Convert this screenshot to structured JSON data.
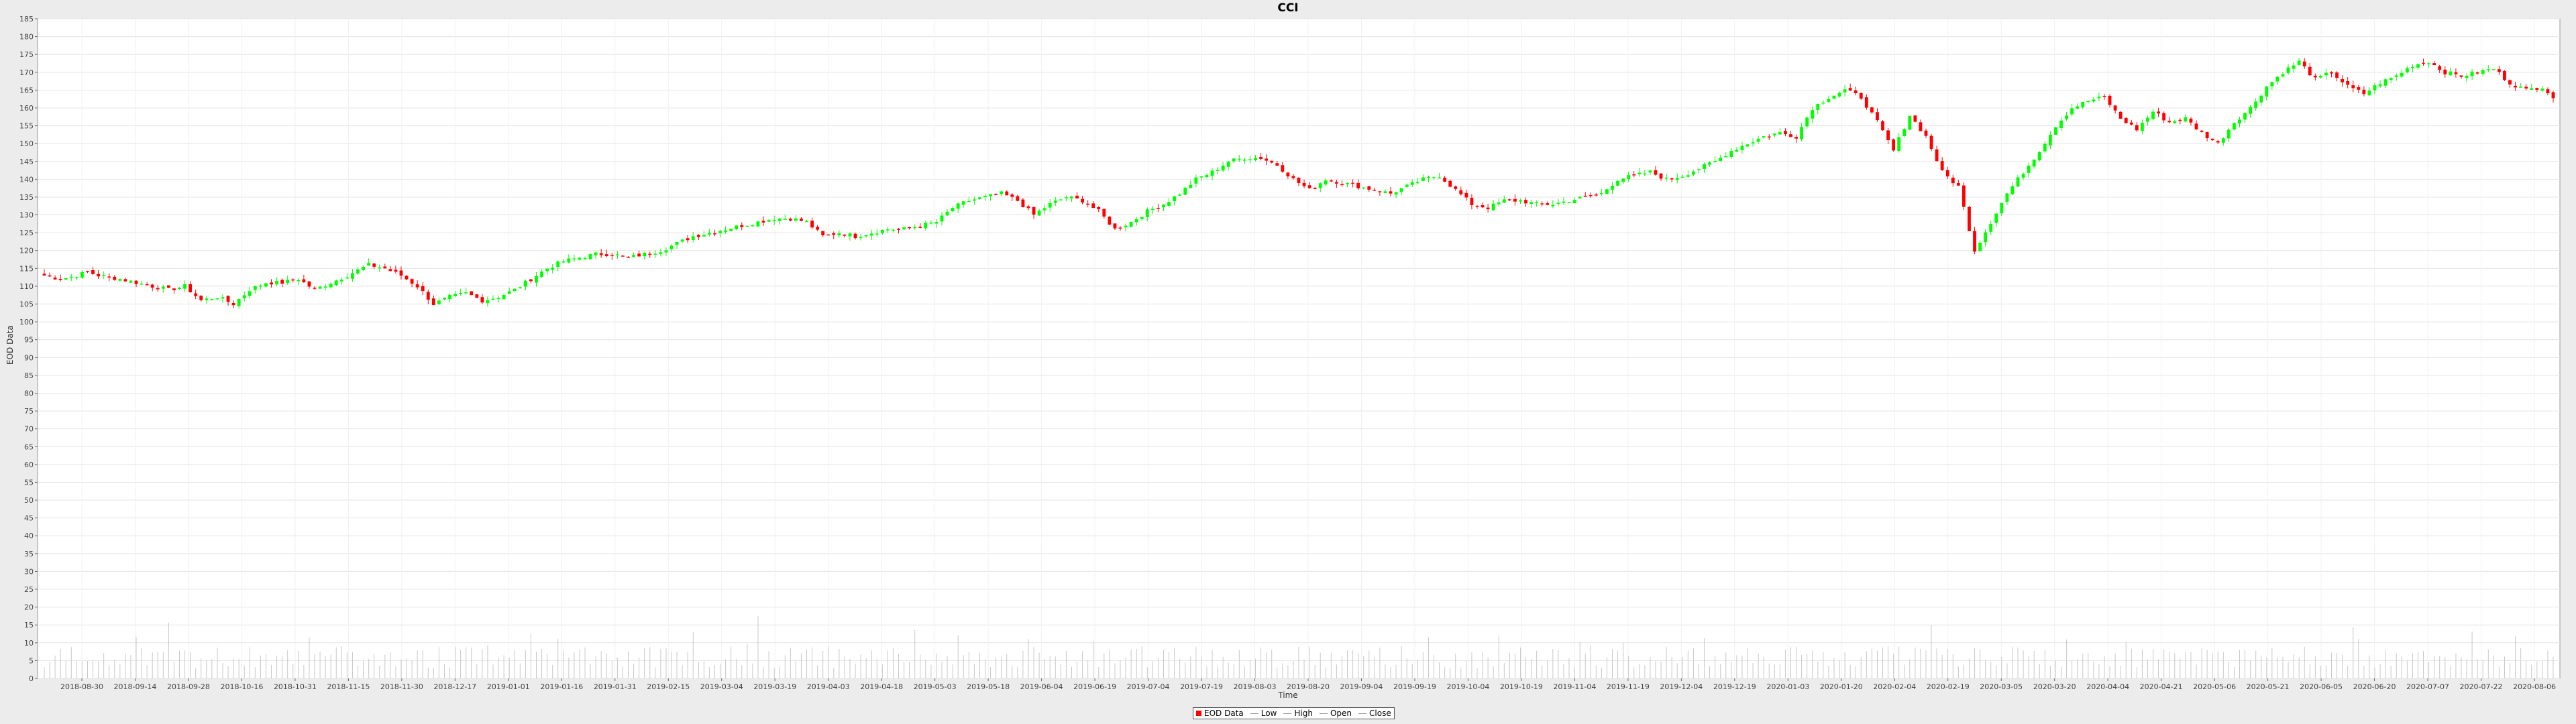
{
  "chart_data": {
    "type": "candlestick",
    "title": "CCI",
    "xlabel": "Time",
    "ylabel": "EOD Data",
    "ylim": [
      0,
      185
    ],
    "y_ticks": [
      0,
      5,
      10,
      15,
      20,
      25,
      30,
      35,
      40,
      45,
      50,
      55,
      60,
      65,
      70,
      75,
      80,
      85,
      90,
      95,
      100,
      105,
      110,
      115,
      120,
      125,
      130,
      135,
      140,
      145,
      150,
      155,
      160,
      165,
      170,
      175,
      180,
      185
    ],
    "x_ticks": [
      "2018-08-30",
      "2018-09-14",
      "2018-09-28",
      "2018-10-16",
      "2018-10-31",
      "2018-11-15",
      "2018-11-30",
      "2018-12-17",
      "2019-01-01",
      "2019-01-16",
      "2019-01-31",
      "2019-02-15",
      "2019-03-04",
      "2019-03-19",
      "2019-04-03",
      "2019-04-18",
      "2019-05-03",
      "2019-05-18",
      "2019-06-04",
      "2019-06-19",
      "2019-07-04",
      "2019-07-19",
      "2019-08-03",
      "2019-08-20",
      "2019-09-04",
      "2019-09-19",
      "2019-10-04",
      "2019-10-19",
      "2019-11-04",
      "2019-11-19",
      "2019-12-04",
      "2019-12-19",
      "2020-01-03",
      "2020-01-20",
      "2020-02-04",
      "2020-02-19",
      "2020-03-05",
      "2020-03-20",
      "2020-04-04",
      "2020-04-21",
      "2020-05-06",
      "2020-05-21",
      "2020-06-05",
      "2020-06-20",
      "2020-07-07",
      "2020-07-22",
      "2020-08-06"
    ],
    "close_path": [
      [
        0,
        113
      ],
      [
        3,
        112
      ],
      [
        6,
        113
      ],
      [
        8,
        114
      ],
      [
        10,
        113
      ],
      [
        14,
        112
      ],
      [
        17,
        111
      ],
      [
        20,
        110
      ],
      [
        23,
        109
      ],
      [
        26,
        110
      ],
      [
        29,
        106
      ],
      [
        32,
        107
      ],
      [
        35,
        105
      ],
      [
        38,
        109
      ],
      [
        41,
        111
      ],
      [
        44,
        111
      ],
      [
        47,
        112
      ],
      [
        50,
        109
      ],
      [
        53,
        111
      ],
      [
        56,
        113
      ],
      [
        60,
        116
      ],
      [
        63,
        115
      ],
      [
        66,
        113
      ],
      [
        69,
        110
      ],
      [
        72,
        105
      ],
      [
        75,
        107
      ],
      [
        78,
        108
      ],
      [
        81,
        106
      ],
      [
        84,
        107
      ],
      [
        87,
        109
      ],
      [
        90,
        112
      ],
      [
        93,
        115
      ],
      [
        96,
        117
      ],
      [
        99,
        118
      ],
      [
        102,
        119
      ],
      [
        105,
        119
      ],
      [
        108,
        118
      ],
      [
        111,
        119
      ],
      [
        114,
        120
      ],
      [
        117,
        122
      ],
      [
        120,
        124
      ],
      [
        123,
        125
      ],
      [
        126,
        126
      ],
      [
        129,
        127
      ],
      [
        132,
        128
      ],
      [
        135,
        129
      ],
      [
        138,
        129
      ],
      [
        141,
        128
      ],
      [
        144,
        124
      ],
      [
        147,
        125
      ],
      [
        150,
        124
      ],
      [
        153,
        125
      ],
      [
        156,
        126
      ],
      [
        159,
        126
      ],
      [
        162,
        127
      ],
      [
        165,
        128
      ],
      [
        168,
        132
      ],
      [
        171,
        134
      ],
      [
        174,
        135
      ],
      [
        177,
        136
      ],
      [
        180,
        134
      ],
      [
        183,
        130
      ],
      [
        186,
        133
      ],
      [
        189,
        135
      ],
      [
        192,
        134
      ],
      [
        195,
        131
      ],
      [
        198,
        126
      ],
      [
        201,
        128
      ],
      [
        204,
        131
      ],
      [
        207,
        133
      ],
      [
        210,
        136
      ],
      [
        213,
        140
      ],
      [
        216,
        142
      ],
      [
        219,
        145
      ],
      [
        222,
        146
      ],
      [
        225,
        146
      ],
      [
        228,
        144
      ],
      [
        231,
        140
      ],
      [
        234,
        137
      ],
      [
        237,
        140
      ],
      [
        240,
        139
      ],
      [
        243,
        138
      ],
      [
        246,
        137
      ],
      [
        249,
        136
      ],
      [
        252,
        138
      ],
      [
        255,
        140
      ],
      [
        258,
        141
      ],
      [
        261,
        137
      ],
      [
        264,
        133
      ],
      [
        267,
        132
      ],
      [
        270,
        134
      ],
      [
        273,
        134
      ],
      [
        276,
        133
      ],
      [
        279,
        133
      ],
      [
        282,
        134
      ],
      [
        285,
        135
      ],
      [
        288,
        136
      ],
      [
        291,
        140
      ],
      [
        294,
        141
      ],
      [
        297,
        142
      ],
      [
        300,
        140
      ],
      [
        303,
        141
      ],
      [
        306,
        143
      ],
      [
        309,
        145
      ],
      [
        312,
        148
      ],
      [
        315,
        150
      ],
      [
        318,
        152
      ],
      [
        321,
        153
      ],
      [
        324,
        152
      ],
      [
        327,
        160
      ],
      [
        330,
        163
      ],
      [
        333,
        165
      ],
      [
        336,
        163
      ],
      [
        339,
        156
      ],
      [
        342,
        148
      ],
      [
        345,
        158
      ],
      [
        348,
        152
      ],
      [
        351,
        142
      ],
      [
        354,
        138
      ],
      [
        357,
        120
      ],
      [
        360,
        128
      ],
      [
        363,
        136
      ],
      [
        366,
        142
      ],
      [
        369,
        148
      ],
      [
        372,
        155
      ],
      [
        375,
        160
      ],
      [
        378,
        162
      ],
      [
        381,
        163
      ],
      [
        384,
        157
      ],
      [
        387,
        154
      ],
      [
        390,
        159
      ],
      [
        393,
        156
      ],
      [
        396,
        157
      ],
      [
        399,
        153
      ],
      [
        402,
        150
      ],
      [
        405,
        156
      ],
      [
        408,
        160
      ],
      [
        411,
        166
      ],
      [
        414,
        170
      ],
      [
        417,
        173
      ],
      [
        420,
        168
      ],
      [
        423,
        170
      ],
      [
        426,
        166
      ],
      [
        429,
        164
      ],
      [
        432,
        167
      ],
      [
        435,
        169
      ],
      [
        438,
        172
      ],
      [
        441,
        173
      ],
      [
        444,
        170
      ],
      [
        447,
        169
      ],
      [
        450,
        170
      ],
      [
        453,
        171
      ],
      [
        456,
        167
      ],
      [
        459,
        165
      ],
      [
        462,
        166
      ],
      [
        464,
        163
      ]
    ],
    "volume_scale_note": "",
    "colors": {
      "up": "#00ff00",
      "down": "#ff0000",
      "grid": "#e4e4e4",
      "plot_bg": "#ffffff",
      "volume": "#c8c8c8"
    },
    "legend": [
      {
        "label": "EOD Data",
        "style": "swatch",
        "color": "#ff0000"
      },
      {
        "label": "Low",
        "style": "line"
      },
      {
        "label": "High",
        "style": "line"
      },
      {
        "label": "Open",
        "style": "line"
      },
      {
        "label": "Close",
        "style": "line"
      }
    ]
  }
}
